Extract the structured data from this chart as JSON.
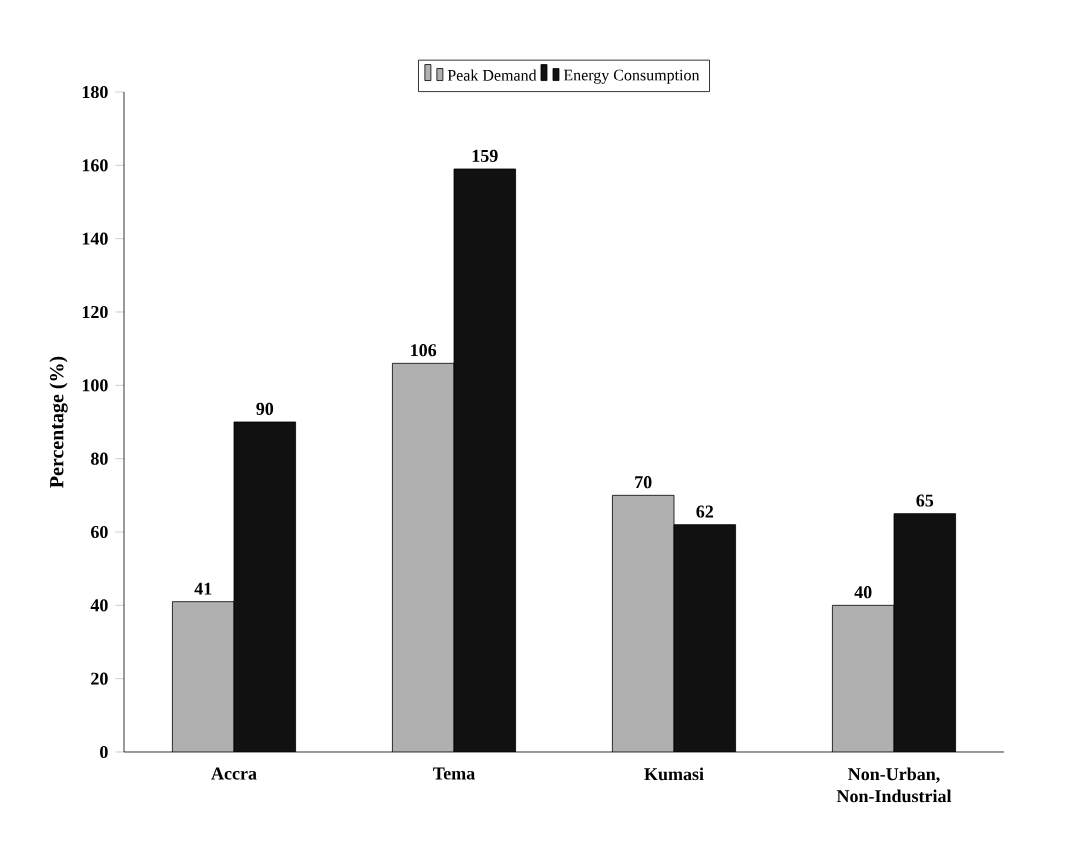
{
  "chart_data": {
    "type": "bar",
    "categories": [
      "Accra",
      "Tema",
      "Kumasi",
      "Non-Urban, Non-Industrial"
    ],
    "series": [
      {
        "name": "Peak Demand",
        "color": "#b0b0b0",
        "values": [
          41,
          106,
          70,
          40
        ]
      },
      {
        "name": "Energy Consumption",
        "color": "#111111",
        "values": [
          90,
          159,
          62,
          65
        ]
      }
    ],
    "ylabel": "Percentage (%)",
    "ylim": [
      0,
      180
    ],
    "yticks": [
      0,
      20,
      40,
      60,
      80,
      100,
      120,
      140,
      160,
      180
    ],
    "data_labels": true,
    "legend": "top",
    "grid": false
  }
}
